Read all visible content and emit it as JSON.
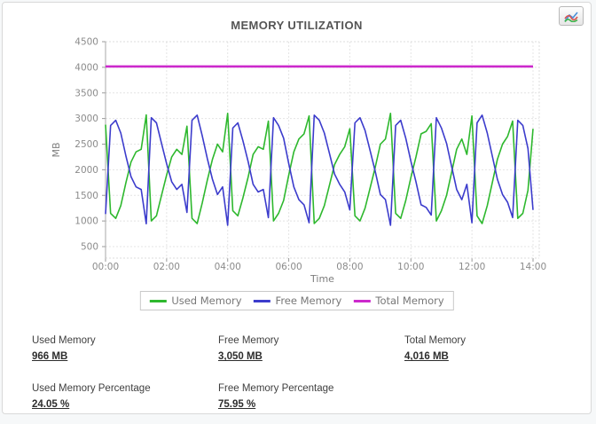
{
  "header": {
    "chart_button_icon": "area-chart-icon"
  },
  "chart_data": {
    "type": "line",
    "title": "MEMORY UTILIZATION",
    "xlabel": "Time",
    "ylabel": "MB",
    "ylim": [
      500,
      4500
    ],
    "ytick_step": 500,
    "x_ticks": [
      "00:00",
      "02:00",
      "04:00",
      "06:00",
      "08:00",
      "10:00",
      "12:00",
      "14:00"
    ],
    "x_range_hours": [
      0,
      14
    ],
    "sample_interval_minutes": 10,
    "grid": true,
    "legend_position": "bottom",
    "series": [
      {
        "name": "Used Memory",
        "color": "#2eb82e",
        "values": [
          2880,
          1150,
          1050,
          1300,
          1750,
          2150,
          2350,
          2400,
          3070,
          1000,
          1100,
          1500,
          1900,
          2250,
          2400,
          2300,
          2850,
          1050,
          950,
          1350,
          1800,
          2200,
          2500,
          2350,
          3100,
          1200,
          1100,
          1450,
          1850,
          2300,
          2450,
          2400,
          2950,
          1000,
          1150,
          1400,
          1900,
          2350,
          2600,
          2700,
          3050,
          950,
          1050,
          1300,
          1700,
          2100,
          2300,
          2450,
          2800,
          1100,
          1000,
          1250,
          1650,
          2050,
          2500,
          2600,
          3100,
          1150,
          1050,
          1400,
          1850,
          2250,
          2700,
          2750,
          2900,
          1000,
          1200,
          1500,
          1950,
          2400,
          2600,
          2300,
          3050,
          1100,
          950,
          1300,
          1750,
          2200,
          2500,
          2650,
          2950,
          1050,
          1150,
          1600,
          2800
        ]
      },
      {
        "name": "Free Memory",
        "color": "#3c3ccc",
        "values": [
          1136,
          2866,
          2966,
          2716,
          2266,
          1866,
          1666,
          1616,
          946,
          3016,
          2916,
          2516,
          2116,
          1766,
          1616,
          1716,
          1166,
          2966,
          3066,
          2666,
          2216,
          1816,
          1516,
          1666,
          916,
          2816,
          2916,
          2566,
          2166,
          1716,
          1566,
          1616,
          1066,
          3016,
          2866,
          2616,
          2116,
          1666,
          1416,
          1316,
          966,
          3066,
          2966,
          2716,
          2316,
          1916,
          1716,
          1566,
          1216,
          2916,
          3016,
          2766,
          2366,
          1966,
          1516,
          1416,
          916,
          2866,
          2966,
          2616,
          2166,
          1766,
          1316,
          1266,
          1116,
          3016,
          2816,
          2516,
          2066,
          1616,
          1416,
          1716,
          966,
          2916,
          3066,
          2716,
          2266,
          1816,
          1516,
          1366,
          1066,
          2966,
          2866,
          2416,
          1216
        ]
      },
      {
        "name": "Total Memory",
        "color": "#cc29cc",
        "constant": 4016
      }
    ]
  },
  "stats": [
    {
      "label": "Used Memory",
      "value": "966 MB"
    },
    {
      "label": "Free Memory",
      "value": "3,050 MB"
    },
    {
      "label": "Total Memory",
      "value": "4,016 MB"
    },
    {
      "label": "Used Memory Percentage",
      "value": "24.05 %"
    },
    {
      "label": "Free Memory Percentage",
      "value": "75.95 %"
    }
  ]
}
